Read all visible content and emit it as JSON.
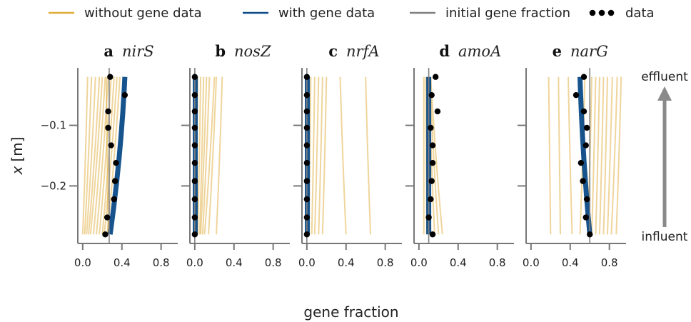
{
  "chart_data": {
    "type": "line",
    "xlabel": "gene fraction",
    "ylabel_var": "x",
    "ylabel_unit": "[m]",
    "xlim": [
      -0.05,
      0.97
    ],
    "ylim": [
      -0.295,
      -0.005
    ],
    "xticks": [
      0.0,
      0.4,
      0.8
    ],
    "xtick_labels": [
      "0.0",
      "0.4",
      "0.8"
    ],
    "yticks": [
      -0.1,
      -0.2
    ],
    "ytick_labels": [
      "−0.1",
      "−0.2"
    ],
    "legend": {
      "placement": "top",
      "entries": [
        {
          "label": "without gene data",
          "color": "#e0ac3a",
          "kind": "line"
        },
        {
          "label": "with gene data",
          "color": "#0b4a86",
          "kind": "line"
        },
        {
          "label": "initial gene fraction",
          "color": "#808080",
          "kind": "line"
        },
        {
          "label": "data",
          "color": "#000000",
          "kind": "dots"
        }
      ]
    },
    "annotations": {
      "top": "effluent",
      "bottom": "influent"
    },
    "colors": {
      "without": "#e0ac3a",
      "with": "#0b4a86",
      "initial": "#808080",
      "data": "#000000",
      "axis": "#777777",
      "arrow": "#8a8a8a"
    },
    "depths": [
      -0.02,
      -0.05,
      -0.077,
      -0.104,
      -0.133,
      -0.162,
      -0.192,
      -0.222,
      -0.252,
      -0.28
    ],
    "panels": [
      {
        "letter": "a",
        "gene": "nirS",
        "initial": 0.27,
        "with_top": 0.43,
        "with_bottom": 0.28,
        "data_x": [
          0.28,
          0.43,
          0.26,
          0.26,
          0.29,
          0.34,
          0.33,
          0.32,
          0.25,
          0.23
        ],
        "without": [
          {
            "top": 0.05,
            "bottom": 0.0
          },
          {
            "top": 0.09,
            "bottom": 0.02
          },
          {
            "top": 0.13,
            "bottom": 0.04
          },
          {
            "top": 0.17,
            "bottom": 0.06
          },
          {
            "top": 0.2,
            "bottom": 0.08
          },
          {
            "top": 0.23,
            "bottom": 0.11
          },
          {
            "top": 0.26,
            "bottom": 0.14
          },
          {
            "top": 0.29,
            "bottom": 0.17
          },
          {
            "top": 0.32,
            "bottom": 0.2
          },
          {
            "top": 0.35,
            "bottom": 0.22
          },
          {
            "top": 0.38,
            "bottom": 0.25
          },
          {
            "top": 0.24,
            "bottom": 0.26
          }
        ]
      },
      {
        "letter": "b",
        "gene": "nosZ",
        "initial": 0.0,
        "with_top": 0.005,
        "with_bottom": 0.005,
        "data_x": [
          0.0,
          0.0,
          0.0,
          0.0,
          0.0,
          0.0,
          0.0,
          0.0,
          0.0,
          0.0
        ],
        "without": [
          {
            "top": 0.03,
            "bottom": 0.01
          },
          {
            "top": 0.06,
            "bottom": 0.03
          },
          {
            "top": 0.09,
            "bottom": 0.05
          },
          {
            "top": 0.12,
            "bottom": 0.06
          },
          {
            "top": 0.15,
            "bottom": 0.08
          },
          {
            "top": 0.2,
            "bottom": 0.1
          },
          {
            "top": 0.22,
            "bottom": 0.14
          },
          {
            "top": 0.28,
            "bottom": 0.22
          }
        ]
      },
      {
        "letter": "c",
        "gene": "nrfA",
        "initial": 0.0,
        "with_top": 0.005,
        "with_bottom": 0.005,
        "data_x": [
          0.0,
          0.0,
          0.0,
          0.0,
          0.0,
          0.0,
          0.0,
          0.0,
          0.0,
          0.0
        ],
        "without": [
          {
            "top": 0.04,
            "bottom": 0.02
          },
          {
            "top": 0.08,
            "bottom": 0.05
          },
          {
            "top": 0.12,
            "bottom": 0.08
          },
          {
            "top": 0.16,
            "bottom": 0.12
          },
          {
            "top": 0.2,
            "bottom": 0.16
          },
          {
            "top": 0.34,
            "bottom": 0.4
          },
          {
            "top": 0.6,
            "bottom": 0.65
          }
        ]
      },
      {
        "letter": "d",
        "gene": "amoA",
        "initial": 0.1,
        "with_top": 0.1,
        "with_bottom": 0.1,
        "data_x": [
          0.17,
          0.13,
          0.19,
          0.12,
          0.14,
          0.14,
          0.13,
          0.12,
          0.1,
          0.14
        ],
        "without": [
          {
            "top": 0.05,
            "bottom": 0.05
          },
          {
            "top": 0.07,
            "bottom": 0.08
          },
          {
            "top": 0.09,
            "bottom": 0.12
          },
          {
            "top": 0.1,
            "bottom": 0.16
          },
          {
            "top": 0.11,
            "bottom": 0.2
          },
          {
            "top": 0.12,
            "bottom": 0.24
          }
        ]
      },
      {
        "letter": "e",
        "gene": "narG",
        "initial": 0.6,
        "with_top": 0.5,
        "with_bottom": 0.6,
        "data_x": [
          0.54,
          0.46,
          0.54,
          0.57,
          0.56,
          0.51,
          0.53,
          0.57,
          0.56,
          0.6
        ],
        "without": [
          {
            "top": 0.18,
            "bottom": 0.2
          },
          {
            "top": 0.28,
            "bottom": 0.3
          },
          {
            "top": 0.38,
            "bottom": 0.42
          },
          {
            "top": 0.55,
            "bottom": 0.5
          },
          {
            "top": 0.62,
            "bottom": 0.58
          },
          {
            "top": 0.66,
            "bottom": 0.62
          },
          {
            "top": 0.7,
            "bottom": 0.66
          },
          {
            "top": 0.74,
            "bottom": 0.7
          },
          {
            "top": 0.78,
            "bottom": 0.74
          },
          {
            "top": 0.83,
            "bottom": 0.78
          },
          {
            "top": 0.88,
            "bottom": 0.82
          },
          {
            "top": 0.92,
            "bottom": 0.87
          }
        ]
      }
    ]
  }
}
